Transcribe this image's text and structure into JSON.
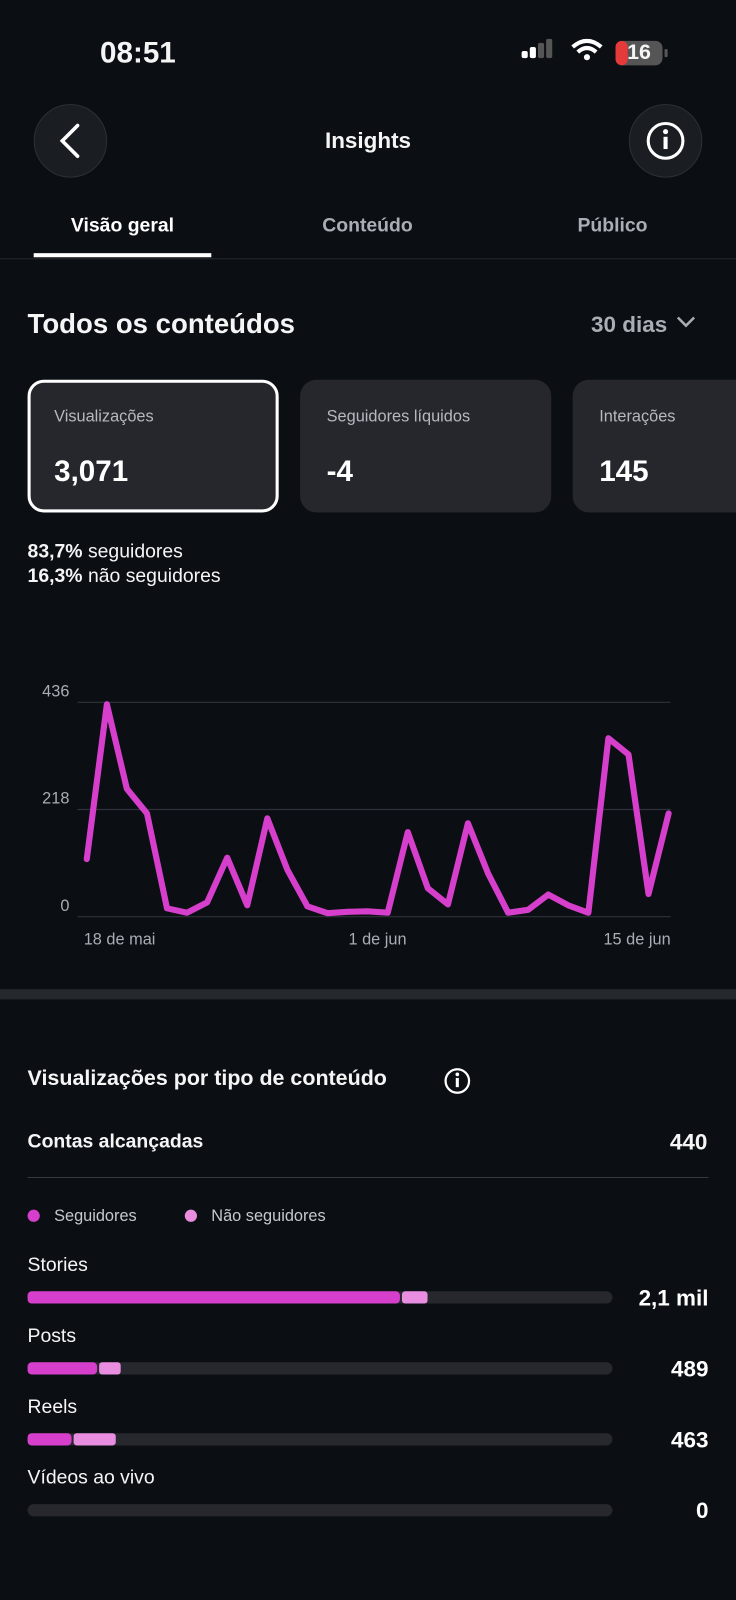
{
  "status_bar": {
    "time": "08:51",
    "battery": "16"
  },
  "header": {
    "title": "Insights"
  },
  "tabs": [
    "Visão geral",
    "Conteúdo",
    "Público"
  ],
  "section": {
    "title": "Todos os conteúdos",
    "period": "30 dias"
  },
  "cards": [
    {
      "label": "Visualizações",
      "value": "3,071"
    },
    {
      "label": "Seguidores líquidos",
      "value": "-4"
    },
    {
      "label": "Interações",
      "value": "145"
    }
  ],
  "breakdown": [
    {
      "value": "83,7%",
      "label": "seguidores"
    },
    {
      "value": "16,3%",
      "label": "não seguidores"
    }
  ],
  "chart_data": {
    "type": "line",
    "categories": [
      null,
      "18 de mai",
      null,
      null,
      null,
      null,
      null,
      null,
      null,
      null,
      null,
      null,
      null,
      null,
      null,
      "1 de jun",
      null,
      null,
      null,
      null,
      null,
      null,
      null,
      null,
      null,
      null,
      null,
      null,
      null,
      "15 de jun"
    ],
    "values": [
      117,
      432,
      260,
      210,
      17,
      8,
      29,
      120,
      23,
      200,
      95,
      21,
      7,
      10,
      11,
      8,
      172,
      58,
      25,
      190,
      88,
      8,
      14,
      45,
      23,
      8,
      363,
      330,
      46,
      210
    ],
    "color": "#d63fcc",
    "ylim": [
      0,
      436
    ],
    "yticks": [
      0,
      218,
      436
    ],
    "grid": true
  },
  "content_types": {
    "title": "Visualizações por tipo de conteúdo",
    "reach_label": "Contas alcançadas",
    "reach_value": 440,
    "legend": [
      {
        "name": "Seguidores",
        "color": "#d63fcc"
      },
      {
        "name": "Não seguidores",
        "color": "#e88de0"
      }
    ],
    "xlim": [
      0,
      3071
    ],
    "rows": [
      {
        "name": "Stories",
        "followers": 1955,
        "non_followers": 145,
        "total": 2100,
        "total_label": "2,1 mil"
      },
      {
        "name": "Posts",
        "followers": 365,
        "non_followers": 124,
        "total": 489
      },
      {
        "name": "Reels",
        "followers": 231,
        "non_followers": 232,
        "total": 463
      },
      {
        "name": "Vídeos ao vivo",
        "followers": 0,
        "non_followers": 0,
        "total": 0
      }
    ]
  }
}
